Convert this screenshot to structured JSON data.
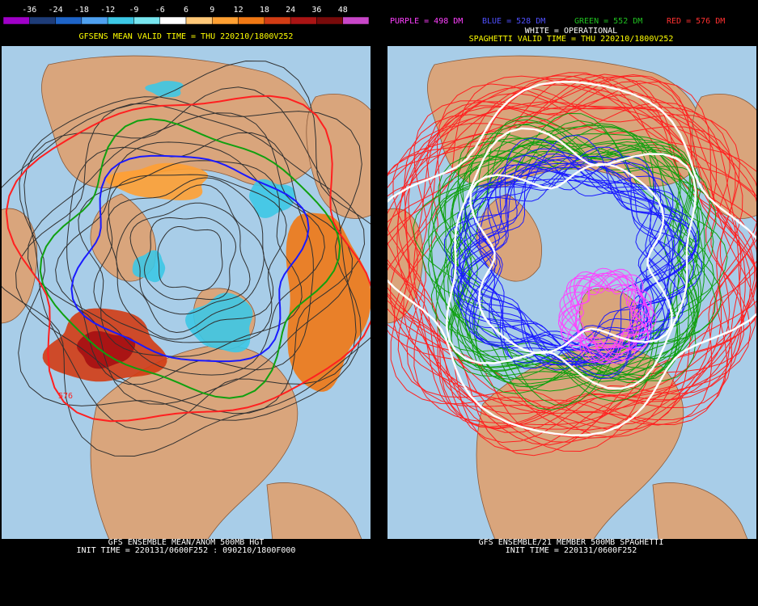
{
  "colorbar": {
    "labels": [
      -36,
      -24,
      -18,
      -12,
      -9,
      -6,
      6,
      9,
      12,
      18,
      24,
      36,
      48
    ],
    "colors": [
      "#a000c8",
      "#1e3c78",
      "#1e64c8",
      "#4ea0f0",
      "#3cc8e6",
      "#78e6f0",
      "#ffffff",
      "#ffc878",
      "#ffa032",
      "#f07814",
      "#d23c14",
      "#aa1414",
      "#780a0a",
      "#c846c8"
    ]
  },
  "left_panel": {
    "title": "GFSENS MEAN VALID TIME = THU 220210/1800V252",
    "contour_label": "576",
    "footer": [
      "GFS ENSEMBLE MEAN/ANOM 500MB HGT",
      "INIT TIME = 220131/0600F252 : 090210/1800F000"
    ]
  },
  "right_panel": {
    "legend": [
      {
        "text": "PURPLE = 498 DM",
        "color": "#ff40ff"
      },
      {
        "text": "BLUE = 528 DM",
        "color": "#5050ff"
      },
      {
        "text": "GREEN = 552 DM",
        "color": "#20c020"
      },
      {
        "text": "RED = 576 DM",
        "color": "#ff3030"
      }
    ],
    "operational": "WHITE = OPERATIONAL",
    "title": "SPAGHETTI VALID TIME = THU 220210/1800V252",
    "footer": [
      "GFS ENSEMBLE/21 MEMBER 500MB SPAGHETTI",
      "INIT TIME = 220131/0600F252"
    ]
  }
}
